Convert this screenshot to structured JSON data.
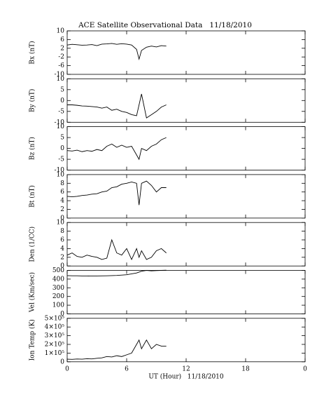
{
  "chart_data": [
    {
      "type": "line",
      "title": "ACE Satellite Observational Data   11/18/2010",
      "ylabel": "Bx (nT)",
      "color": "#000000",
      "x": [
        0,
        0.5,
        1,
        1.5,
        2,
        2.5,
        3,
        3.5,
        4,
        4.5,
        5,
        5.5,
        6,
        6.5,
        7,
        7.25,
        7.5,
        8,
        8.5,
        9,
        9.5,
        10
      ],
      "values": [
        3.5,
        3.8,
        3.6,
        3.4,
        3.5,
        3.7,
        3.2,
        3.9,
        4,
        4.2,
        3.8,
        4.1,
        3.9,
        3.5,
        1.5,
        -3,
        1,
        2.5,
        3,
        2.6,
        3.2,
        3.0
      ],
      "xlim": [
        0,
        24
      ],
      "ylim": [
        -10,
        10
      ],
      "yticks": [
        -10,
        -6,
        -2,
        2,
        6,
        10
      ]
    },
    {
      "type": "line",
      "ylabel": "By (nT)",
      "color": "#000000",
      "x": [
        0,
        0.5,
        1,
        1.5,
        2,
        2.5,
        3,
        3.5,
        4,
        4.5,
        5,
        5.5,
        6,
        6.5,
        7,
        7.25,
        7.5,
        8,
        8.5,
        9,
        9.5,
        10
      ],
      "values": [
        -2,
        -2,
        -2.2,
        -2.5,
        -2.6,
        -2.8,
        -3,
        -3.5,
        -3,
        -4.5,
        -4,
        -5,
        -5.5,
        -6.5,
        -7,
        -2,
        3,
        -8,
        -6.5,
        -5,
        -3,
        -2
      ],
      "xlim": [
        0,
        24
      ],
      "ylim": [
        -10,
        10
      ],
      "yticks": [
        -10,
        -5,
        0,
        5,
        10
      ]
    },
    {
      "type": "line",
      "ylabel": "Bz (nT)",
      "color": "#000000",
      "x": [
        0,
        0.5,
        1,
        1.5,
        2,
        2.5,
        3,
        3.5,
        4,
        4.5,
        5,
        5.5,
        6,
        6.5,
        7,
        7.25,
        7.5,
        8,
        8.5,
        9,
        9.5,
        10
      ],
      "values": [
        -1,
        -1.2,
        -0.8,
        -1.5,
        -1,
        -1.3,
        -0.5,
        -1,
        1,
        2,
        0.5,
        1.5,
        0.5,
        1,
        -3,
        -5,
        0,
        -1,
        1,
        2,
        4,
        5
      ],
      "xlim": [
        0,
        24
      ],
      "ylim": [
        -10,
        10
      ],
      "yticks": [
        -10,
        -5,
        0,
        5,
        10
      ]
    },
    {
      "type": "line",
      "ylabel": "Bt (nT)",
      "color": "#000000",
      "x": [
        0,
        0.5,
        1,
        1.5,
        2,
        2.5,
        3,
        3.5,
        4,
        4.5,
        5,
        5.5,
        6,
        6.5,
        7,
        7.25,
        7.5,
        8,
        8.5,
        9,
        9.5,
        10
      ],
      "values": [
        5,
        4.9,
        5,
        5.2,
        5.3,
        5.5,
        5.6,
        6,
        6.2,
        7,
        7.2,
        7.8,
        8,
        8.3,
        8,
        3,
        8,
        8.5,
        7.5,
        6,
        7,
        7
      ],
      "xlim": [
        0,
        24
      ],
      "ylim": [
        0,
        10
      ],
      "yticks": [
        0,
        2,
        4,
        6,
        8,
        10
      ]
    },
    {
      "type": "line",
      "ylabel": "Den (1/CC)",
      "color": "#000000",
      "x": [
        0,
        0.5,
        1,
        1.5,
        2,
        2.5,
        3,
        3.5,
        4,
        4.5,
        5,
        5.5,
        6,
        6.5,
        7,
        7.25,
        7.5,
        8,
        8.5,
        9,
        9.5,
        10
      ],
      "values": [
        2.5,
        3,
        2.2,
        2,
        2.5,
        2.2,
        2,
        1.5,
        1.8,
        6,
        3,
        2.5,
        4,
        1.5,
        4,
        2,
        3.5,
        1.5,
        2,
        3.5,
        4,
        3
      ],
      "xlim": [
        0,
        24
      ],
      "ylim": [
        0,
        10
      ],
      "yticks": [
        0,
        2,
        4,
        6,
        8,
        10
      ]
    },
    {
      "type": "line",
      "ylabel": "Vel (Km/sec)",
      "color": "#000000",
      "x": [
        0,
        0.5,
        1,
        1.5,
        2,
        2.5,
        3,
        3.5,
        4,
        4.5,
        5,
        5.5,
        6,
        6.5,
        7,
        7.25,
        7.5,
        8,
        8.5,
        9,
        9.5,
        10
      ],
      "values": [
        440,
        438,
        438,
        436,
        436,
        435,
        436,
        437,
        438,
        440,
        442,
        446,
        450,
        460,
        470,
        480,
        490,
        500,
        495,
        498,
        500,
        502
      ],
      "xlim": [
        0,
        24
      ],
      "ylim": [
        0,
        500
      ],
      "yticks": [
        0,
        100,
        200,
        300,
        400,
        500
      ]
    },
    {
      "type": "line",
      "ylabel": "Ion Temp (K)",
      "color": "#000000",
      "xlabel": "UT (Hour)   11/18/2010",
      "x": [
        0,
        0.5,
        1,
        1.5,
        2,
        2.5,
        3,
        3.5,
        4,
        4.5,
        5,
        5.5,
        6,
        6.5,
        7,
        7.25,
        7.5,
        8,
        8.5,
        9,
        9.5,
        10
      ],
      "values": [
        30000,
        28000,
        32000,
        30000,
        35000,
        33000,
        40000,
        45000,
        60000,
        55000,
        70000,
        60000,
        80000,
        100000,
        200000,
        250000,
        150000,
        250000,
        150000,
        200000,
        180000,
        180000
      ],
      "xlim": [
        0,
        24
      ],
      "xticks": [
        0,
        6,
        12,
        18,
        {
          "value": 24,
          "label": "0"
        }
      ],
      "ylim": [
        0,
        500000
      ],
      "yticks": [
        0,
        {
          "value": 100000,
          "label": "1×10⁵"
        },
        {
          "value": 200000,
          "label": "2×10⁵"
        },
        {
          "value": 300000,
          "label": "3×10⁵"
        },
        {
          "value": 400000,
          "label": "4×10⁵"
        },
        {
          "value": 500000,
          "label": "5×10⁵"
        }
      ]
    }
  ]
}
